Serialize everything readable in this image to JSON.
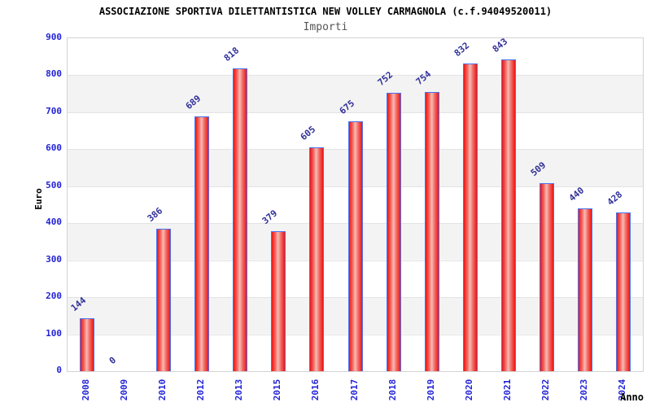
{
  "chart_data": {
    "type": "bar",
    "title": "ASSOCIAZIONE SPORTIVA DILETTANTISTICA NEW VOLLEY CARMAGNOLA (c.f.94049520011)",
    "subtitle": "Importi",
    "xlabel": "Anno",
    "ylabel": "Euro",
    "categories": [
      "2008",
      "2009",
      "2010",
      "2012",
      "2013",
      "2015",
      "2016",
      "2017",
      "2018",
      "2019",
      "2020",
      "2021",
      "2022",
      "2023",
      "2024"
    ],
    "values": [
      144,
      0,
      386,
      689,
      818,
      379,
      605,
      675,
      752,
      754,
      832,
      843,
      509,
      440,
      428
    ],
    "ylim": [
      0,
      900
    ],
    "ytick_step": 100,
    "grid": "horizontal",
    "legend": "none",
    "band_fill": "alternating",
    "colors": {
      "bar_edge": "#ed1515",
      "bar_center": "#f6bcb6",
      "bar_border": "#4a73f0",
      "value_label": "#32329b",
      "tick_label": "#2323d7",
      "band": "#f3f3f3",
      "gridline": "#e3e3e3",
      "plot_border": "#d3d3d3",
      "title": "#000000",
      "subtitle": "#555555"
    }
  }
}
